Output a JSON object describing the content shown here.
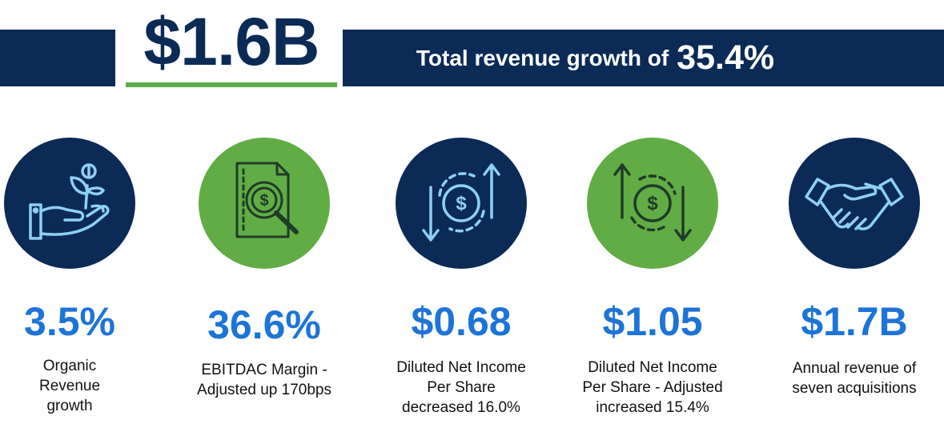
{
  "header": {
    "headline_value": "$1.6B",
    "growth_label": "Total revenue growth of",
    "growth_value": "35.4%"
  },
  "colors": {
    "navy": "#0b2a55",
    "green": "#62ac45",
    "light_blue": "#8ed0f5",
    "value_blue": "#1d74d6"
  },
  "metrics": [
    {
      "value": "3.5%",
      "label_lines": [
        "Organic",
        "Revenue",
        "growth"
      ],
      "icon": "hand-growing-money-plant-icon"
    },
    {
      "value": "36.6%",
      "label_lines": [
        "EBITDAC Margin -",
        "Adjusted up 170bps"
      ],
      "icon": "document-magnifier-dollar-icon"
    },
    {
      "value": "$0.68",
      "label_lines": [
        "Diluted Net Income",
        "Per Share",
        "decreased 16.0%"
      ],
      "icon": "dollar-cycle-arrows-icon"
    },
    {
      "value": "$1.05",
      "label_lines": [
        "Diluted Net Income",
        "Per Share - Adjusted",
        "increased 15.4%"
      ],
      "icon": "dollar-cycle-arrows-icon"
    },
    {
      "value": "$1.7B",
      "label_lines": [
        "Annual revenue of",
        "seven acquisitions"
      ],
      "icon": "handshake-icon"
    }
  ]
}
